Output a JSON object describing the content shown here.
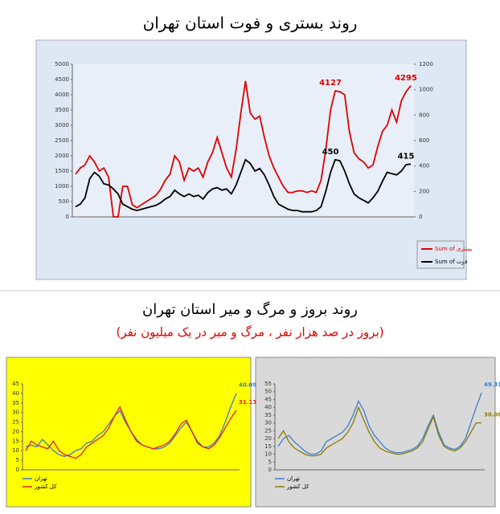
{
  "section_title": "روند بروز و مرگ و میر استان تهران",
  "section_subtitle": "(بروز در صد هزار نفر ، مرگ و میر در یک میلیون نفر)",
  "chart_data": [
    {
      "type": "line",
      "title": "روند بستری و فوت استان تهران",
      "ylim": [
        0,
        5000
      ],
      "yticks": [
        0,
        500,
        1000,
        1500,
        2000,
        2500,
        3000,
        3500,
        4000,
        4500,
        5000
      ],
      "y2lim": [
        0,
        1200
      ],
      "y2ticks": [
        0,
        200,
        400,
        600,
        800,
        1000,
        1200
      ],
      "grid": false,
      "legend": "right",
      "series": [
        {
          "name": "Sum of بستری",
          "color": "#e00000",
          "values": [
            1400,
            1600,
            1700,
            2000,
            1800,
            1500,
            1600,
            1300,
            0,
            0,
            1000,
            1000,
            400,
            300,
            400,
            500,
            600,
            700,
            900,
            1200,
            1400,
            2000,
            1800,
            1200,
            1600,
            1500,
            1600,
            1300,
            1800,
            2100,
            2600,
            2100,
            1600,
            1300,
            2200,
            3400,
            4450,
            3400,
            3200,
            3300,
            2600,
            2000,
            1600,
            1300,
            1000,
            800,
            800,
            850,
            850,
            800,
            850,
            800,
            1200,
            2200,
            3500,
            4127,
            4100,
            4000,
            2800,
            2100,
            1900,
            1800,
            1600,
            1700,
            2300,
            2800,
            3000,
            3500,
            3100,
            3800,
            4100,
            4295
          ]
        },
        {
          "name": "Sum of فوت",
          "color": "#000000",
          "axis": "y2",
          "values": [
            80,
            100,
            150,
            300,
            350,
            320,
            260,
            250,
            220,
            180,
            100,
            80,
            60,
            50,
            60,
            70,
            80,
            90,
            110,
            140,
            160,
            210,
            180,
            160,
            180,
            160,
            170,
            140,
            190,
            220,
            230,
            210,
            220,
            180,
            250,
            350,
            450,
            420,
            360,
            380,
            330,
            250,
            160,
            100,
            80,
            60,
            50,
            50,
            40,
            40,
            40,
            50,
            80,
            200,
            350,
            450,
            440,
            360,
            260,
            180,
            150,
            130,
            110,
            150,
            200,
            280,
            350,
            340,
            330,
            360,
            410,
            415
          ]
        }
      ]
    },
    {
      "type": "line",
      "ylim": [
        0,
        45
      ],
      "yticks": [
        0,
        5,
        10,
        15,
        20,
        25,
        30,
        35,
        40,
        45
      ],
      "grid": false,
      "background": "#ffff00",
      "series": [
        {
          "name": "تهران",
          "color": "#3a7fd0",
          "values": [
            12,
            13,
            12,
            16,
            13,
            10,
            8,
            7,
            8,
            10,
            11,
            14,
            15,
            18,
            20,
            24,
            28,
            31,
            25,
            20,
            16,
            13,
            12,
            11,
            11,
            12,
            14,
            18,
            22,
            25,
            20,
            15,
            12,
            12,
            14,
            18,
            25,
            33,
            40.09
          ]
        },
        {
          "name": "کل کشور",
          "color": "#e02020",
          "values": [
            10,
            15,
            13,
            12,
            11,
            15,
            10,
            8,
            7,
            6,
            8,
            12,
            14,
            16,
            18,
            22,
            28,
            33,
            26,
            20,
            15,
            13,
            12,
            11,
            12,
            13,
            15,
            19,
            24,
            26,
            20,
            14,
            12,
            11,
            13,
            17,
            22,
            27,
            31.13
          ]
        }
      ]
    },
    {
      "type": "line",
      "ylim": [
        0,
        55
      ],
      "yticks": [
        0,
        5,
        10,
        15,
        20,
        25,
        30,
        35,
        40,
        45,
        50,
        55
      ],
      "grid": false,
      "background": "#d9d9d9",
      "series": [
        {
          "name": "تهران",
          "color": "#3a7fd0",
          "values": [
            15,
            20,
            22,
            18,
            15,
            12,
            10,
            10,
            12,
            18,
            20,
            22,
            24,
            28,
            35,
            44,
            38,
            28,
            22,
            18,
            14,
            12,
            11,
            11,
            12,
            13,
            15,
            20,
            28,
            35,
            24,
            16,
            14,
            13,
            15,
            20,
            30,
            40,
            49.31
          ]
        },
        {
          "name": "کل کشور",
          "color": "#8a7a00",
          "values": [
            20,
            25,
            18,
            14,
            12,
            10,
            9,
            9,
            10,
            14,
            16,
            18,
            20,
            24,
            30,
            40,
            32,
            24,
            18,
            14,
            12,
            11,
            10,
            10,
            11,
            12,
            14,
            18,
            26,
            34,
            22,
            15,
            13,
            12,
            14,
            18,
            24,
            30,
            30.08
          ]
        }
      ]
    }
  ]
}
